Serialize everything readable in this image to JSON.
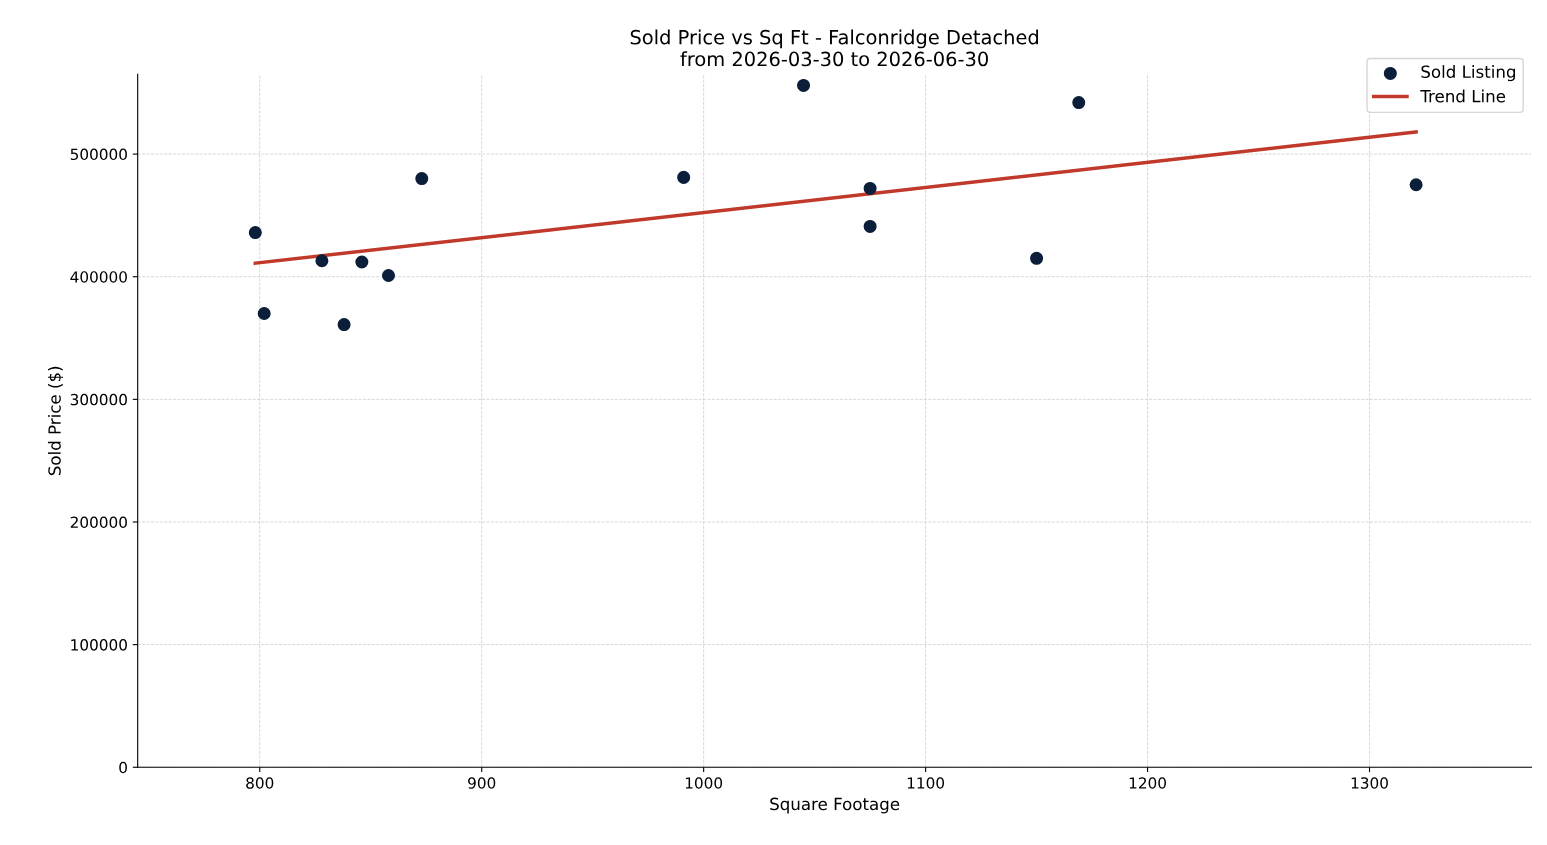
{
  "chart_data": {
    "type": "scatter",
    "title": "Sold Price vs Sq Ft - Falconridge Detached\nfrom 2026-03-30 to 2026-06-30",
    "xlabel": "Square Footage",
    "ylabel": "Sold Price ($)",
    "xlim": [
      745,
      1373
    ],
    "xticks": [
      800,
      900,
      1000,
      1100,
      1200,
      1300
    ],
    "ylim": [
      0,
      565000
    ],
    "yticks": [
      0,
      100000,
      200000,
      300000,
      400000,
      500000
    ],
    "grid": true,
    "legend": "top right",
    "series": [
      {
        "name": "Sold Listing",
        "marker": "circle",
        "color": "#0b1e3a",
        "x": [
          798,
          802,
          828,
          838,
          846,
          858,
          873,
          991,
          1045,
          1075,
          1075,
          1150,
          1169,
          1321
        ],
        "values": [
          436000,
          370000,
          413000,
          361000,
          412000,
          401000,
          480000,
          481000,
          556000,
          472000,
          441000,
          415000,
          542000,
          475000
        ]
      },
      {
        "name": "Trend Line",
        "type": "line",
        "color": "#c0392b",
        "x": [
          798,
          1321
        ],
        "values": [
          411000,
          518000
        ]
      }
    ]
  }
}
